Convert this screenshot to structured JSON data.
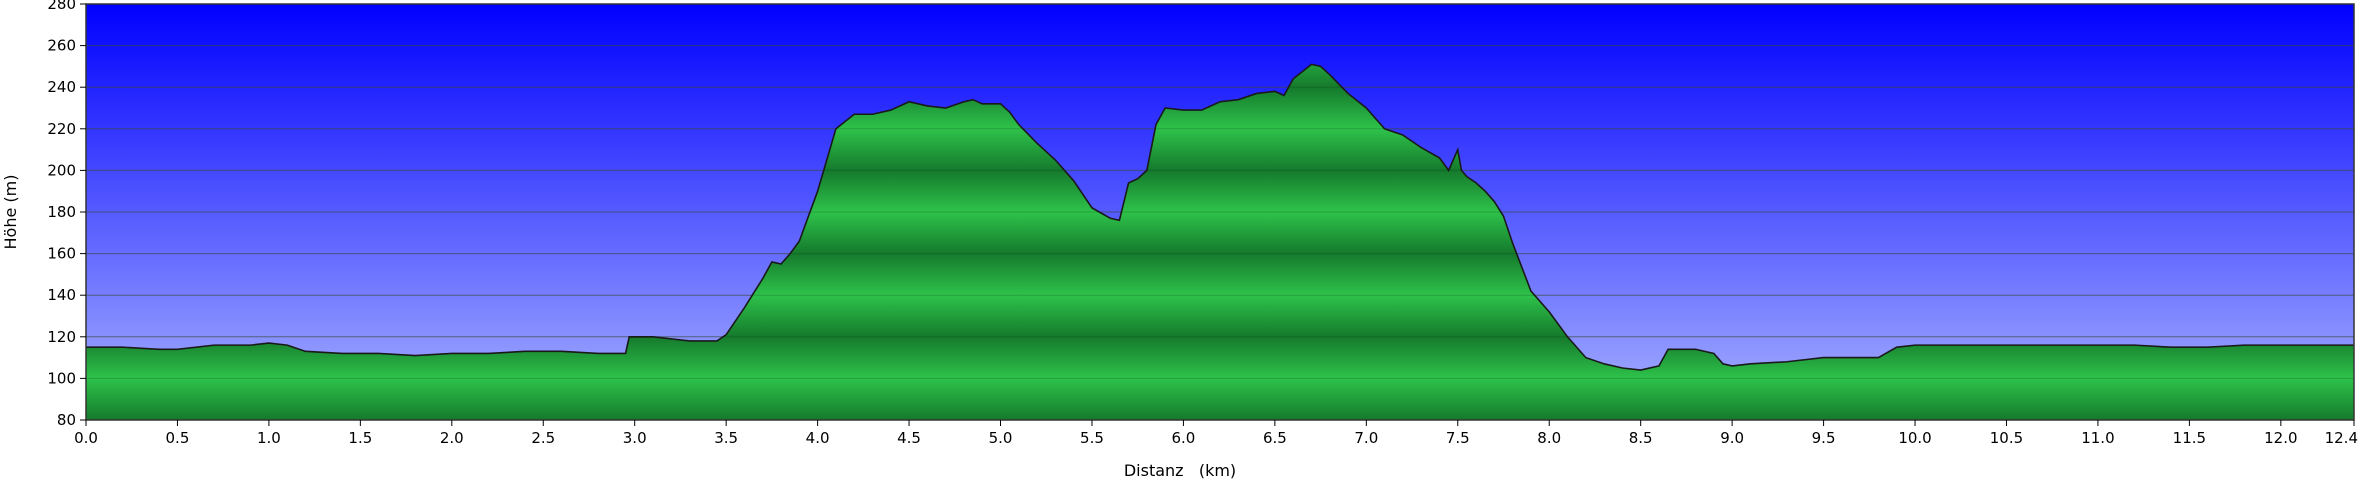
{
  "chart_data": {
    "type": "area",
    "title": "",
    "xlabel": "Distanz   (km)",
    "ylabel": "Höhe (m)",
    "xlim": [
      0,
      12.4
    ],
    "ylim": [
      80,
      280
    ],
    "x_ticks": [
      0.0,
      0.5,
      1.0,
      1.5,
      2.0,
      2.5,
      3.0,
      3.5,
      4.0,
      4.5,
      5.0,
      5.5,
      6.0,
      6.5,
      7.0,
      7.5,
      8.0,
      8.5,
      9.0,
      9.5,
      10.0,
      10.5,
      11.0,
      11.5,
      12.0,
      12.4
    ],
    "x_tick_labels": [
      "0.0",
      "0.5",
      "1.0",
      "1.5",
      "2.0",
      "2.5",
      "3.0",
      "3.5",
      "4.0",
      "4.5",
      "5.0",
      "5.5",
      "6.0",
      "6.5",
      "7.0",
      "7.5",
      "8.0",
      "8.5",
      "9.0",
      "9.5",
      "10.0",
      "10.5",
      "11.0",
      "11.5",
      "12.0",
      "12.4"
    ],
    "y_ticks": [
      80,
      100,
      120,
      140,
      160,
      180,
      200,
      220,
      240,
      260,
      280
    ],
    "y_tick_labels": [
      "80",
      "100",
      "120",
      "140",
      "160",
      "180",
      "200",
      "220",
      "240",
      "260",
      "280"
    ],
    "grid": true,
    "colors": {
      "sky_top": "#0000ff",
      "sky_bottom": "#aab4ff",
      "fill_light": "#2ec24a",
      "fill_dark": "#157a2c",
      "outline": "#1a1a1a",
      "grid": "#555555"
    },
    "series": [
      {
        "values_x": [
          0.0,
          0.2,
          0.4,
          0.5,
          0.7,
          0.9,
          1.0,
          1.1,
          1.2,
          1.4,
          1.6,
          1.8,
          2.0,
          2.2,
          2.4,
          2.6,
          2.8,
          2.95,
          2.97,
          3.1,
          3.2,
          3.3,
          3.45,
          3.5,
          3.6,
          3.7,
          3.75,
          3.8,
          3.85,
          3.9,
          4.0,
          4.05,
          4.1,
          4.2,
          4.3,
          4.4,
          4.5,
          4.6,
          4.7,
          4.8,
          4.85,
          4.9,
          5.0,
          5.05,
          5.1,
          5.2,
          5.3,
          5.4,
          5.5,
          5.6,
          5.65,
          5.7,
          5.75,
          5.8,
          5.85,
          5.9,
          6.0,
          6.1,
          6.2,
          6.3,
          6.4,
          6.5,
          6.55,
          6.6,
          6.7,
          6.75,
          6.8,
          6.9,
          7.0,
          7.1,
          7.2,
          7.3,
          7.4,
          7.45,
          7.5,
          7.52,
          7.55,
          7.6,
          7.65,
          7.7,
          7.75,
          7.8,
          7.9,
          8.0,
          8.1,
          8.2,
          8.3,
          8.4,
          8.5,
          8.6,
          8.65,
          8.7,
          8.8,
          8.9,
          8.95,
          9.0,
          9.1,
          9.3,
          9.5,
          9.7,
          9.8,
          9.9,
          10.0,
          10.2,
          10.4,
          10.6,
          10.8,
          11.0,
          11.2,
          11.4,
          11.6,
          11.8,
          12.0,
          12.2,
          12.4
        ],
        "values_y": [
          115,
          115,
          114,
          114,
          116,
          116,
          117,
          116,
          113,
          112,
          112,
          111,
          112,
          112,
          113,
          113,
          112,
          112,
          120,
          120,
          119,
          118,
          118,
          121,
          134,
          148,
          156,
          155,
          160,
          166,
          190,
          205,
          220,
          227,
          227,
          229,
          233,
          231,
          230,
          233,
          234,
          232,
          232,
          228,
          222,
          213,
          205,
          195,
          182,
          177,
          176,
          194,
          196,
          200,
          222,
          230,
          229,
          229,
          233,
          234,
          237,
          238,
          236,
          244,
          251,
          250,
          246,
          237,
          230,
          220,
          217,
          211,
          206,
          200,
          210,
          200,
          197,
          194,
          190,
          185,
          178,
          165,
          142,
          132,
          120,
          110,
          107,
          105,
          104,
          106,
          114,
          114,
          114,
          112,
          107,
          106,
          107,
          108,
          110,
          110,
          110,
          115,
          116,
          116,
          116,
          116,
          116,
          116,
          116,
          115,
          115,
          116,
          116,
          116,
          116
        ]
      }
    ]
  }
}
